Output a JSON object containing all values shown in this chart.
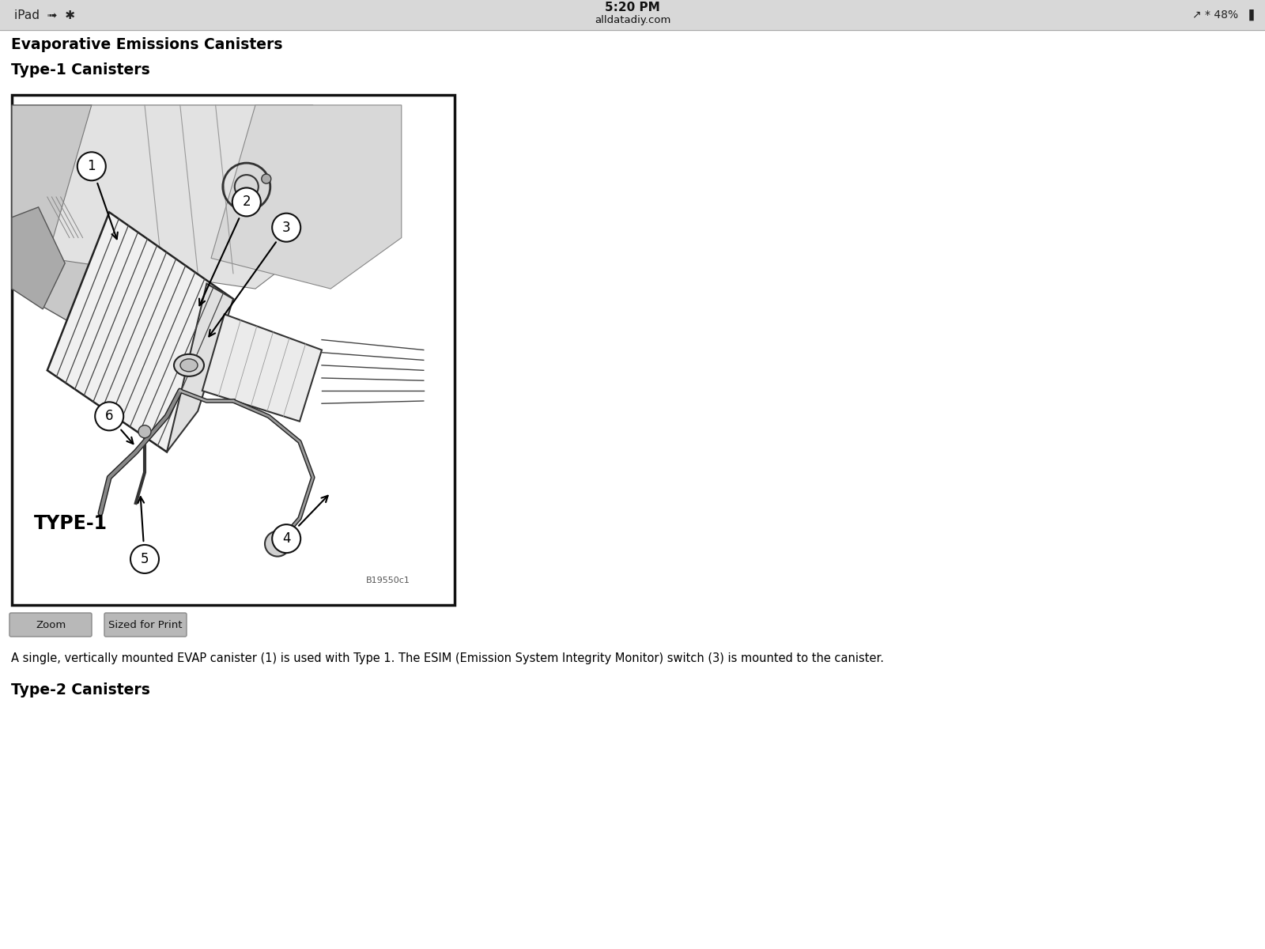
{
  "bg_outer": "#e8e8e8",
  "bg_page": "#ffffff",
  "status_bar_bg": "#d8d8d8",
  "status_left": "iPad",
  "status_center_top": "5:20 PM",
  "status_center_bot": "alldatadiy.com",
  "status_right": "1 * 48%",
  "heading1": "Evaporative Emissions Canisters",
  "heading2": "Type-1 Canisters",
  "heading3": "Type-2 Canisters",
  "type_label": "TYPE-1",
  "part_code": "B19550c1",
  "description": "A single, vertically mounted EVAP canister (1) is used with Type 1. The ESIM (Emission System Integrity Monitor) switch (3) is mounted to the canister.",
  "btn1": "Zoom",
  "btn2": "Sized for Print",
  "diagram_border": "#111111",
  "diagram_bg": "#ffffff",
  "line_color": "#000000",
  "light_gray": "#cccccc",
  "mid_gray": "#999999",
  "dark_line": "#333333"
}
